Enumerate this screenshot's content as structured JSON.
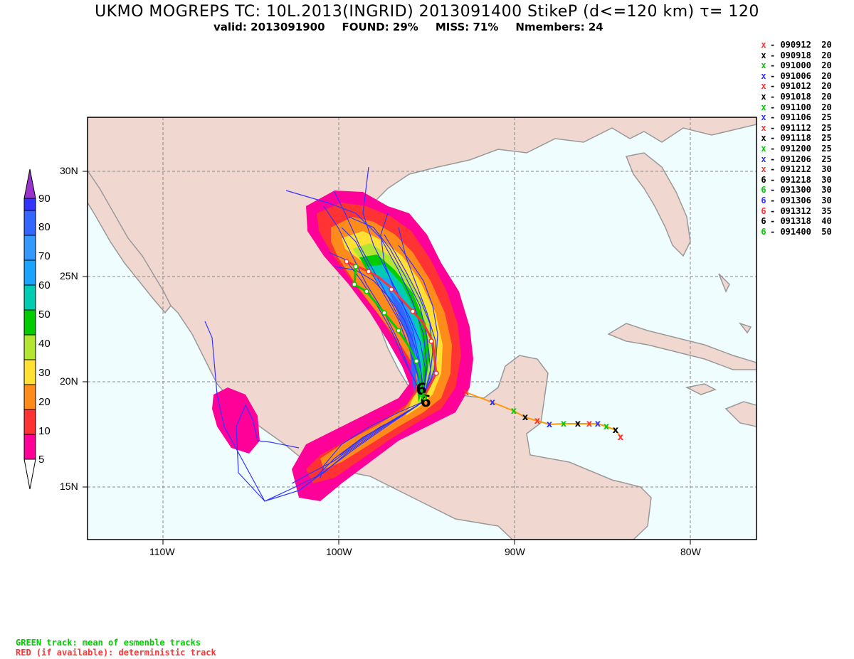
{
  "header": {
    "title": "UKMO MOGREPS TC: 10L.2013(INGRID) 2013091400 StikeP (d<=120 km)  τ= 120",
    "valid": "valid: 2013091900",
    "found": "FOUND: 29%",
    "miss": "MISS: 71%",
    "nmembers": "Nmembers: 24"
  },
  "colorbar": {
    "levels": [
      "5",
      "10",
      "20",
      "30",
      "40",
      "50",
      "60",
      "70",
      "80",
      "90"
    ],
    "colors": [
      "#ff0099",
      "#ff3333",
      "#ff8c1a",
      "#ffe033",
      "#b3e633",
      "#00cc00",
      "#00ccb3",
      "#1aa3ff",
      "#3366ff",
      "#9933cc"
    ]
  },
  "axes": {
    "lat_labels": [
      "30N",
      "25N",
      "20N",
      "15N"
    ],
    "lon_labels": [
      "110W",
      "100W",
      "90W",
      "80W"
    ]
  },
  "legend": [
    {
      "label": "- 090912  20",
      "color": "#ff3333",
      "symbol": "x"
    },
    {
      "label": "- 090918  20",
      "color": "#000000",
      "symbol": "x"
    },
    {
      "label": "- 091000  20",
      "color": "#00cc00",
      "symbol": "x"
    },
    {
      "label": "- 091006  20",
      "color": "#3333ff",
      "symbol": "x"
    },
    {
      "label": "- 091012  20",
      "color": "#ff3333",
      "symbol": "x"
    },
    {
      "label": "- 091018  20",
      "color": "#000000",
      "symbol": "x"
    },
    {
      "label": "- 091100  20",
      "color": "#00cc00",
      "symbol": "x"
    },
    {
      "label": "- 091106  25",
      "color": "#3333ff",
      "symbol": "x"
    },
    {
      "label": "- 091112  25",
      "color": "#ff3333",
      "symbol": "x"
    },
    {
      "label": "- 091118  25",
      "color": "#000000",
      "symbol": "x"
    },
    {
      "label": "- 091200  25",
      "color": "#00cc00",
      "symbol": "x"
    },
    {
      "label": "- 091206  25",
      "color": "#3333ff",
      "symbol": "x"
    },
    {
      "label": "- 091212  30",
      "color": "#ff3333",
      "symbol": "x"
    },
    {
      "label": "- 091218  30",
      "color": "#000000",
      "symbol": "6"
    },
    {
      "label": "- 091300  30",
      "color": "#00cc00",
      "symbol": "6"
    },
    {
      "label": "- 091306  30",
      "color": "#3333ff",
      "symbol": "6"
    },
    {
      "label": "- 091312  35",
      "color": "#ff3333",
      "symbol": "6"
    },
    {
      "label": "- 091318  40",
      "color": "#000000",
      "symbol": "6"
    },
    {
      "label": "- 091400  50",
      "color": "#00cc00",
      "symbol": "6"
    }
  ],
  "footer": {
    "green_note": "GREEN track: mean of esmenble tracks",
    "red_note": "RED (if available): deterministic track"
  }
}
